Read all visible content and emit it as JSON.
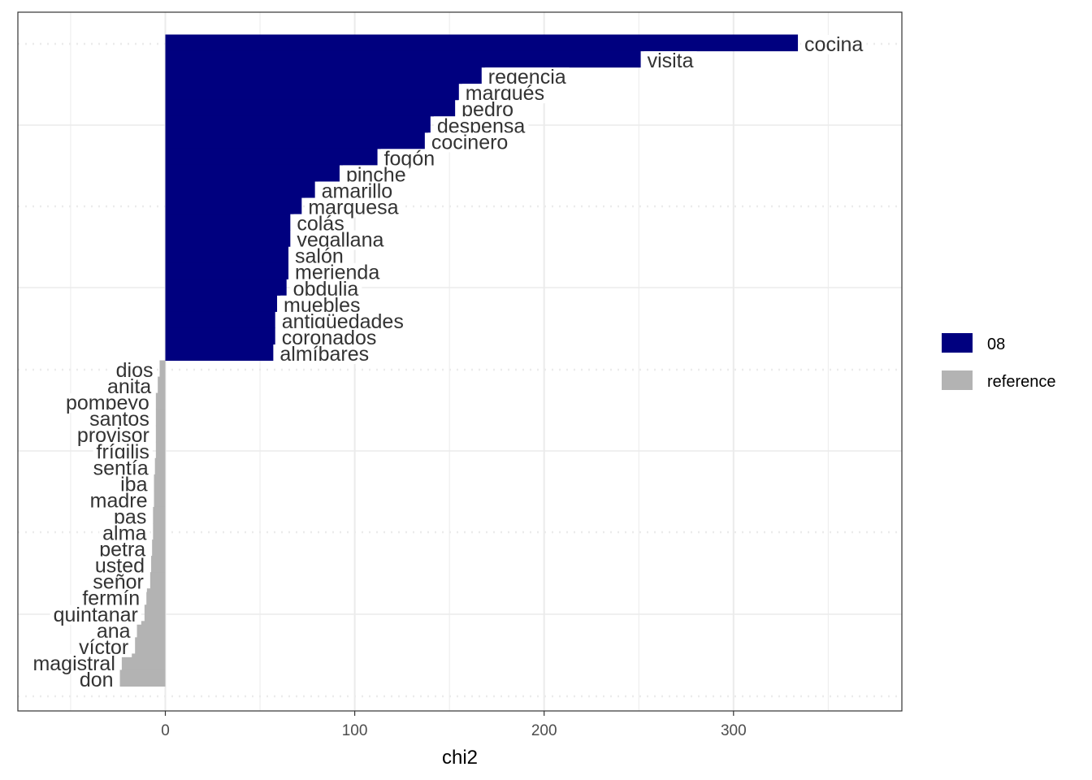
{
  "chart_data": {
    "type": "bar",
    "orientation": "horizontal",
    "xlabel": "chi2",
    "ylabel": "",
    "xlim": [
      -78,
      388
    ],
    "x_ticks": [
      0,
      100,
      200,
      300
    ],
    "grid": true,
    "legend_placement": "right",
    "series": [
      {
        "name": "08",
        "color": "#00007F",
        "labels": [
          "cocina",
          "visita",
          "regencia",
          "marqués",
          "pedro",
          "despensa",
          "cocinero",
          "fogón",
          "pinche",
          "amarillo",
          "marquesa",
          "colás",
          "vegallana",
          "salón",
          "merienda",
          "obdulia",
          "muebles",
          "antigüedades",
          "coronados",
          "almíbares"
        ],
        "values": [
          334,
          251,
          167,
          155,
          153,
          140,
          137,
          112,
          92,
          79,
          72,
          66,
          66,
          65,
          65,
          64,
          59,
          58,
          58,
          57
        ]
      },
      {
        "name": "reference",
        "color": "#B3B3B3",
        "labels": [
          "dios",
          "anita",
          "pompeyo",
          "santos",
          "provisor",
          "frígilis",
          "sentía",
          "iba",
          "madre",
          "pas",
          "alma",
          "petra",
          "usted",
          "señor",
          "fermín",
          "quintanar",
          "ana",
          "víctor",
          "magistral",
          "don"
        ],
        "values": [
          -3,
          -4,
          -5,
          -5,
          -5,
          -5,
          -5.5,
          -6,
          -6,
          -6.5,
          -6.5,
          -7,
          -7.5,
          -8,
          -10,
          -11,
          -15,
          -16,
          -23,
          -24
        ]
      }
    ]
  }
}
